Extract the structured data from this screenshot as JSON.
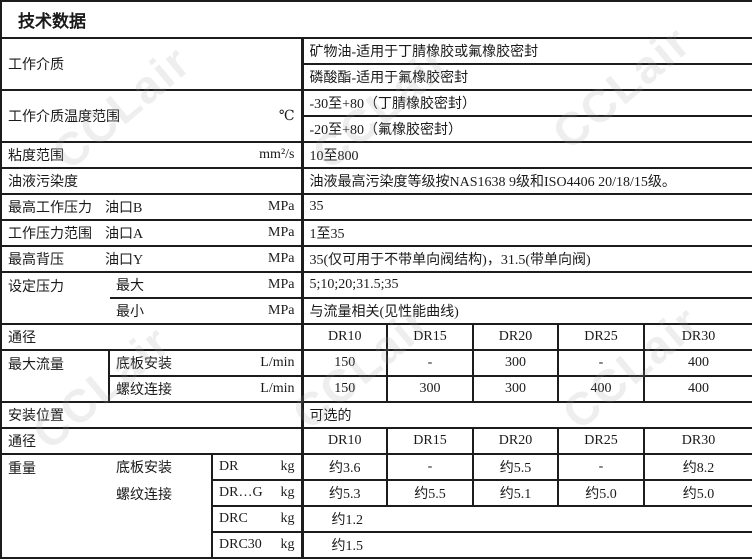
{
  "title": "技术数据",
  "watermark": "CCLair",
  "medium": {
    "label": "工作介质",
    "values": [
      "矿物油-适用于丁腈橡胶或氟橡胶密封",
      "磷酸酯-适用于氟橡胶密封"
    ]
  },
  "temperature": {
    "label": "工作介质温度范围",
    "unit": "℃",
    "values": [
      "-30至+80（丁腈橡胶密封）",
      "-20至+80（氟橡胶密封）"
    ]
  },
  "viscosity": {
    "label": "粘度范围",
    "unit": "mm²/s",
    "value": "10至800"
  },
  "contamination": {
    "label": "油液污染度",
    "value": "油液最高污染度等级按NAS1638 9级和ISO4406 20/18/15级。"
  },
  "max_pressure": {
    "label": "最高工作压力",
    "port": "油口B",
    "unit": "MPa",
    "value": "35"
  },
  "pressure_range": {
    "label": "工作压力范围",
    "port": "油口A",
    "unit": "MPa",
    "value": "1至35"
  },
  "back_pressure": {
    "label": "最高背压",
    "port": "油口Y",
    "unit": "MPa",
    "value": "35(仅可用于不带单向阀结构)，31.5(带单向阀)"
  },
  "set_pressure": {
    "label": "设定压力",
    "max_label": "最大",
    "max_unit": "MPa",
    "max_value": "5;10;20;31.5;35",
    "min_label": "最小",
    "min_unit": "MPa",
    "min_value": "与流量相关(见性能曲线)"
  },
  "bore1": {
    "label": "通径",
    "sizes": [
      "DR10",
      "DR15",
      "DR20",
      "DR25",
      "DR30"
    ]
  },
  "flow": {
    "label": "最大流量",
    "sub_plate": {
      "label": "底板安装",
      "unit": "L/min",
      "values": [
        "150",
        "-",
        "300",
        "-",
        "400"
      ]
    },
    "threaded": {
      "label": "螺纹连接",
      "unit": "L/min",
      "values": [
        "150",
        "300",
        "300",
        "400",
        "400"
      ]
    }
  },
  "mounting": {
    "label": "安装位置",
    "value": "可选的"
  },
  "bore2": {
    "label": "通径",
    "sizes": [
      "DR10",
      "DR15",
      "DR20",
      "DR25",
      "DR30"
    ]
  },
  "weight": {
    "label": "重量",
    "sub_plate_label": "底板安装",
    "threaded_label": "螺纹连接",
    "dr": {
      "type": "DR",
      "unit": "kg",
      "values": [
        "约3.6",
        "-",
        "约5.5",
        "-",
        "约8.2"
      ]
    },
    "drg": {
      "type": "DR…G",
      "unit": "kg",
      "values": [
        "约5.3",
        "约5.5",
        "约5.1",
        "约5.0",
        "约5.0"
      ]
    },
    "drc": {
      "type": "DRC",
      "unit": "kg",
      "value": "约1.2"
    },
    "drc30": {
      "type": "DRC30",
      "unit": "kg",
      "value": "约1.5"
    }
  }
}
